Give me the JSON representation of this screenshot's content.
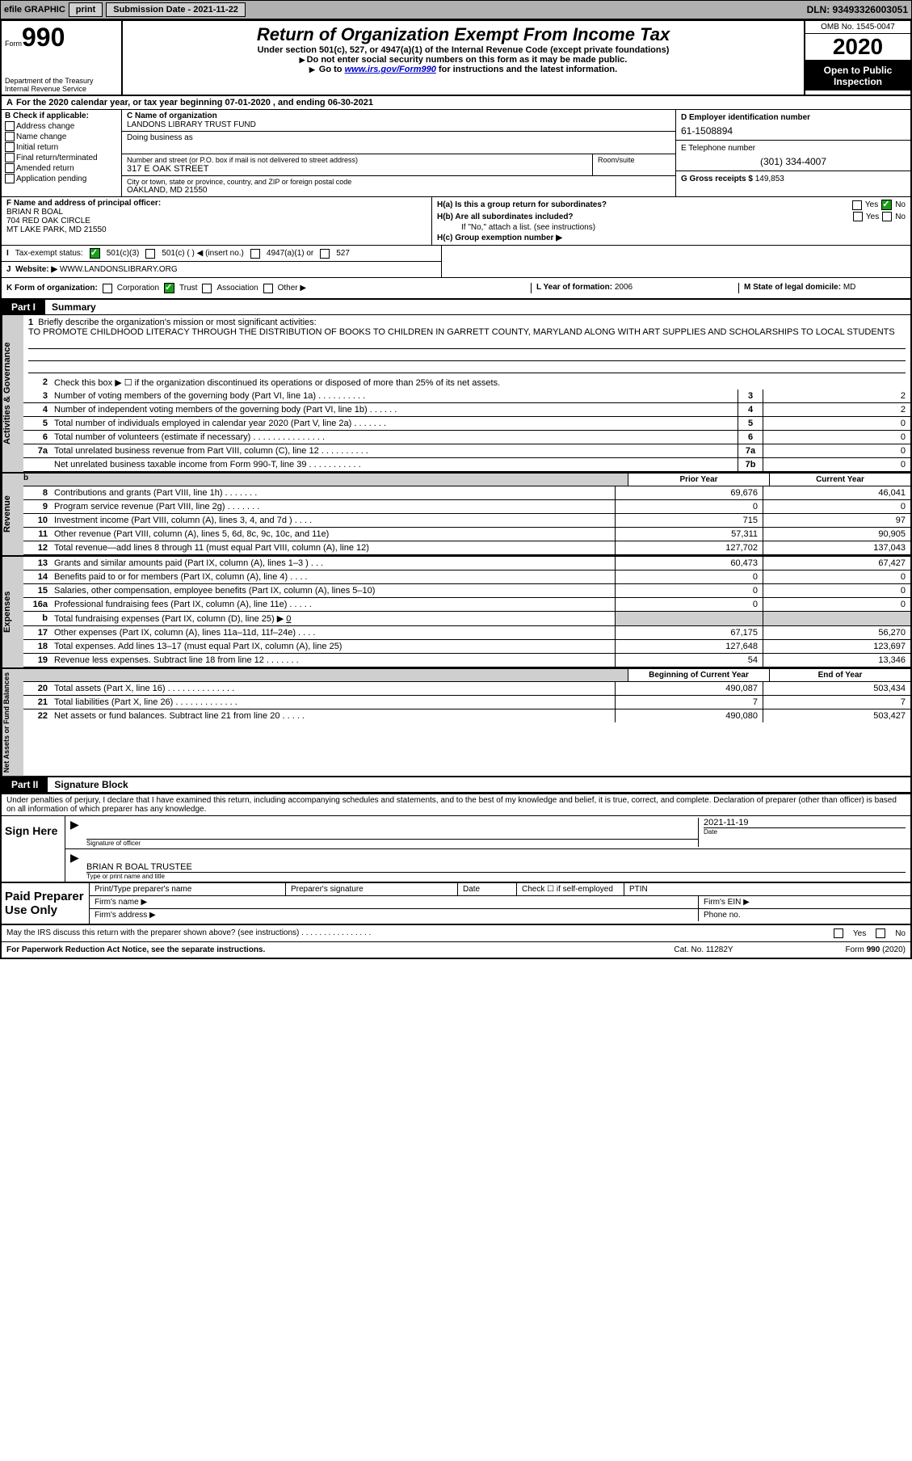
{
  "top": {
    "efile_label": "efile GRAPHIC",
    "print_btn": "print",
    "submission_label": "Submission Date - 2021-11-22",
    "dln": "DLN: 93493326003051"
  },
  "header": {
    "form_prefix": "Form",
    "form_number": "990",
    "dept": "Department of the Treasury",
    "irs": "Internal Revenue Service",
    "title": "Return of Organization Exempt From Income Tax",
    "sub1": "Under section 501(c), 527, or 4947(a)(1) of the Internal Revenue Code (except private foundations)",
    "sub2": "Do not enter social security numbers on this form as it may be made public.",
    "sub3_pre": "Go to ",
    "sub3_link": "www.irs.gov/Form990",
    "sub3_post": " for instructions and the latest information.",
    "omb": "OMB No. 1545-0047",
    "year": "2020",
    "open": "Open to Public Inspection"
  },
  "line_a": "For the 2020 calendar year, or tax year beginning 07-01-2020   , and ending 06-30-2021",
  "col_b": {
    "header": "B Check if applicable:",
    "items": [
      "Address change",
      "Name change",
      "Initial return",
      "Final return/terminated",
      "Amended return",
      "Application pending"
    ]
  },
  "col_c": {
    "name_label": "C Name of organization",
    "name": "LANDONS LIBRARY TRUST FUND",
    "dba_label": "Doing business as",
    "addr_label": "Number and street (or P.O. box if mail is not delivered to street address)",
    "addr": "317 E OAK STREET",
    "room_label": "Room/suite",
    "city_label": "City or town, state or province, country, and ZIP or foreign postal code",
    "city": "OAKLAND, MD  21550"
  },
  "col_d": {
    "ein_label": "D Employer identification number",
    "ein": "61-1508894",
    "phone_label": "E Telephone number",
    "phone": "(301) 334-4007",
    "gross_label": "G Gross receipts $",
    "gross": "149,853"
  },
  "row_f": {
    "label": "F  Name and address of principal officer:",
    "name": "BRIAN R BOAL",
    "addr1": "704 RED OAK CIRCLE",
    "addr2": "MT LAKE PARK, MD  21550",
    "ha": "H(a)  Is this a group return for subordinates?",
    "hb": "H(b)  Are all subordinates included?",
    "hb_note": "If \"No,\" attach a list. (see instructions)",
    "hc": "H(c)  Group exemption number ▶",
    "yes": "Yes",
    "no": "No"
  },
  "row_i": {
    "label": "Tax-exempt status:",
    "opts": [
      "501(c)(3)",
      "501(c) (  ) ◀ (insert no.)",
      "4947(a)(1) or",
      "527"
    ]
  },
  "row_j": {
    "label": "Website: ▶",
    "value": "WWW.LANDONSLIBRARY.ORG"
  },
  "row_k": {
    "label": "K Form of organization:",
    "opts": [
      "Corporation",
      "Trust",
      "Association",
      "Other ▶"
    ],
    "l_label": "L Year of formation:",
    "l_val": "2006",
    "m_label": "M State of legal domicile:",
    "m_val": "MD"
  },
  "part1": {
    "label": "Part I",
    "title": "Summary"
  },
  "governance": {
    "side": "Activities & Governance",
    "line1_label": "Briefly describe the organization's mission or most significant activities:",
    "line1_text": "TO PROMOTE CHILDHOOD LITERACY THROUGH THE DISTRIBUTION OF BOOKS TO CHILDREN IN GARRETT COUNTY, MARYLAND ALONG WITH ART SUPPLIES AND SCHOLARSHIPS TO LOCAL STUDENTS",
    "line2": "Check this box ▶ ☐  if the organization discontinued its operations or disposed of more than 25% of its net assets.",
    "lines": [
      {
        "n": "3",
        "d": "Number of voting members of the governing body (Part VI, line 1a)   .   .   .   .   .   .   .   .   .   .",
        "box": "3",
        "v": "2"
      },
      {
        "n": "4",
        "d": "Number of independent voting members of the governing body (Part VI, line 1b)   .   .   .   .   .   .",
        "box": "4",
        "v": "2"
      },
      {
        "n": "5",
        "d": "Total number of individuals employed in calendar year 2020 (Part V, line 2a)   .   .   .   .   .   .   .",
        "box": "5",
        "v": "0"
      },
      {
        "n": "6",
        "d": "Total number of volunteers (estimate if necessary)   .   .   .   .   .   .   .   .   .   .   .   .   .   .   .",
        "box": "6",
        "v": "0"
      },
      {
        "n": "7a",
        "d": "Total unrelated business revenue from Part VIII, column (C), line 12   .   .   .   .   .   .   .   .   .   .",
        "box": "7a",
        "v": "0"
      },
      {
        "n": "",
        "d": "Net unrelated business taxable income from Form 990-T, line 39   .   .   .   .   .   .   .   .   .   .   .",
        "box": "7b",
        "v": "0"
      }
    ]
  },
  "revenue": {
    "side": "Revenue",
    "prior_header": "Prior Year",
    "current_header": "Current Year",
    "lines": [
      {
        "n": "8",
        "d": "Contributions and grants (Part VIII, line 1h)   .   .   .   .   .   .   .",
        "py": "69,676",
        "cy": "46,041"
      },
      {
        "n": "9",
        "d": "Program service revenue (Part VIII, line 2g)   .   .   .   .   .   .   .",
        "py": "0",
        "cy": "0"
      },
      {
        "n": "10",
        "d": "Investment income (Part VIII, column (A), lines 3, 4, and 7d )   .   .   .   .",
        "py": "715",
        "cy": "97"
      },
      {
        "n": "11",
        "d": "Other revenue (Part VIII, column (A), lines 5, 6d, 8c, 9c, 10c, and 11e)",
        "py": "57,311",
        "cy": "90,905"
      },
      {
        "n": "12",
        "d": "Total revenue—add lines 8 through 11 (must equal Part VIII, column (A), line 12)",
        "py": "127,702",
        "cy": "137,043"
      }
    ]
  },
  "expenses": {
    "side": "Expenses",
    "lines": [
      {
        "n": "13",
        "d": "Grants and similar amounts paid (Part IX, column (A), lines 1–3 )   .   .   .",
        "py": "60,473",
        "cy": "67,427"
      },
      {
        "n": "14",
        "d": "Benefits paid to or for members (Part IX, column (A), line 4)   .   .   .   .",
        "py": "0",
        "cy": "0"
      },
      {
        "n": "15",
        "d": "Salaries, other compensation, employee benefits (Part IX, column (A), lines 5–10)",
        "py": "0",
        "cy": "0"
      },
      {
        "n": "16a",
        "d": "Professional fundraising fees (Part IX, column (A), line 11e)   .   .   .   .   .",
        "py": "0",
        "cy": "0"
      }
    ],
    "line16b_label": "Total fundraising expenses (Part IX, column (D), line 25) ▶",
    "line16b_val": "0",
    "lines2": [
      {
        "n": "17",
        "d": "Other expenses (Part IX, column (A), lines 11a–11d, 11f–24e)   .   .   .   .",
        "py": "67,175",
        "cy": "56,270"
      },
      {
        "n": "18",
        "d": "Total expenses. Add lines 13–17 (must equal Part IX, column (A), line 25)",
        "py": "127,648",
        "cy": "123,697"
      },
      {
        "n": "19",
        "d": "Revenue less expenses. Subtract line 18 from line 12   .   .   .   .   .   .   .",
        "py": "54",
        "cy": "13,346"
      }
    ]
  },
  "netassets": {
    "side": "Net Assets or Fund Balances",
    "begin_header": "Beginning of Current Year",
    "end_header": "End of Year",
    "lines": [
      {
        "n": "20",
        "d": "Total assets (Part X, line 16)   .   .   .   .   .   .   .   .   .   .   .   .   .   .",
        "py": "490,087",
        "cy": "503,434"
      },
      {
        "n": "21",
        "d": "Total liabilities (Part X, line 26)   .   .   .   .   .   .   .   .   .   .   .   .   .",
        "py": "7",
        "cy": "7"
      },
      {
        "n": "22",
        "d": "Net assets or fund balances. Subtract line 21 from line 20   .   .   .   .   .",
        "py": "490,080",
        "cy": "503,427"
      }
    ]
  },
  "part2": {
    "label": "Part II",
    "title": "Signature Block",
    "declaration": "Under penalties of perjury, I declare that I have examined this return, including accompanying schedules and statements, and to the best of my knowledge and belief, it is true, correct, and complete. Declaration of preparer (other than officer) is based on all information of which preparer has any knowledge."
  },
  "sign": {
    "label": "Sign Here",
    "sig_label": "Signature of officer",
    "date_label": "Date",
    "date": "2021-11-19",
    "name": "BRIAN R BOAL TRUSTEE",
    "name_label": "Type or print name and title"
  },
  "paid": {
    "label": "Paid Preparer Use Only",
    "print_label": "Print/Type preparer's name",
    "sig_label": "Preparer's signature",
    "date_label": "Date",
    "check_label": "Check ☐ if self-employed",
    "ptin_label": "PTIN",
    "firm_name": "Firm's name   ▶",
    "firm_ein": "Firm's EIN ▶",
    "firm_addr": "Firm's address ▶",
    "phone": "Phone no."
  },
  "footer": {
    "discuss": "May the IRS discuss this return with the preparer shown above? (see instructions)   .   .   .   .   .   .   .   .   .   .   .   .   .   .   .   .",
    "yes": "Yes",
    "no": "No",
    "paperwork": "For Paperwork Reduction Act Notice, see the separate instructions.",
    "cat": "Cat. No. 11282Y",
    "form": "Form 990 (2020)"
  }
}
